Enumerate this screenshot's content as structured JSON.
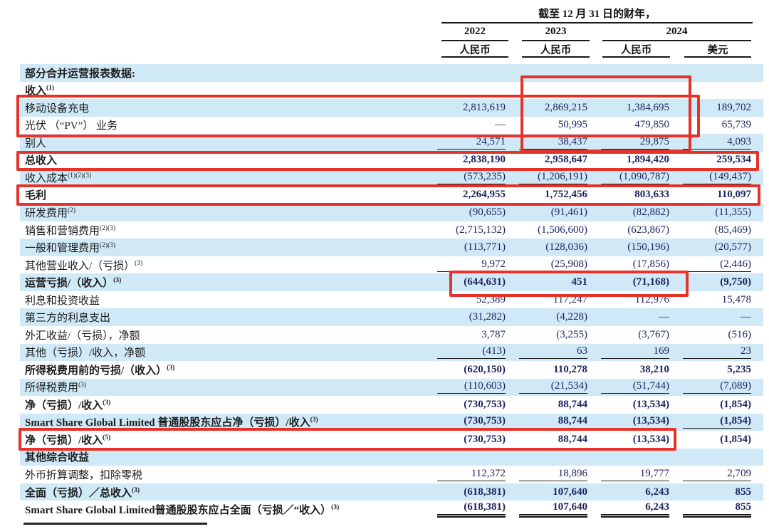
{
  "header": {
    "period_title": "截至 12 月 31 日的财年，",
    "years": [
      "2022",
      "2023",
      "2024"
    ],
    "currencies": [
      "人民币",
      "人民币",
      "人民币",
      "美元"
    ]
  },
  "colors": {
    "stripe_blue": "#cfe9f7",
    "highlight_red": "#e5332a",
    "number_text": "#1f2460",
    "label_text": "#1c1c1c"
  },
  "annotations": {
    "boxes": [
      "highlight-2023-2024-rmb-columns",
      "highlight-mobile-charging-and-pv-rows",
      "highlight-total-revenue-row",
      "highlight-gross-profit-row",
      "highlight-operating-loss-values",
      "highlight-net-loss-duplicate-row"
    ]
  },
  "table": {
    "rows": [
      {
        "label": "部分合并运营报表数据:",
        "sup": "",
        "bold": true,
        "values": [
          "",
          "",
          "",
          ""
        ]
      },
      {
        "label": "收入",
        "sup": "(1)",
        "bold": true,
        "values": [
          "",
          "",
          "",
          ""
        ]
      },
      {
        "label": "移动设备充电",
        "sup": "",
        "bold": false,
        "values": [
          "2,813,619",
          "2,869,215",
          "1,384,695",
          "189,702"
        ]
      },
      {
        "label": "光伏 （“PV”） 业务",
        "sup": "",
        "bold": false,
        "values": [
          "—",
          "50,995",
          "479,850",
          "65,739"
        ]
      },
      {
        "label": "别人",
        "sup": "",
        "bold": false,
        "values": [
          "24,571",
          "38,437",
          "29,875",
          "4,093"
        ],
        "underline": true
      },
      {
        "label": "总收入",
        "sup": "",
        "bold": true,
        "values": [
          "2,838,190",
          "2,958,647",
          "1,894,420",
          "259,534"
        ]
      },
      {
        "label": "收入成本",
        "sup": "(1)(2)(3)",
        "bold": false,
        "values": [
          "(573,235)",
          "(1,206,191)",
          "(1,090,787)",
          "(149,437)"
        ],
        "underline": true
      },
      {
        "label": "毛利",
        "sup": "",
        "bold": true,
        "values": [
          "2,264,955",
          "1,752,456",
          "803,633",
          "110,097"
        ]
      },
      {
        "label": "研发费用",
        "sup": "(2)",
        "bold": false,
        "values": [
          "(90,655)",
          "(91,461)",
          "(82,882)",
          "(11,355)"
        ]
      },
      {
        "label": "销售和营销费用",
        "sup": "(2)(3)",
        "bold": false,
        "values": [
          "(2,715,132)",
          "(1,506,600)",
          "(623,867)",
          "(85,469)"
        ]
      },
      {
        "label": "一般和管理费用",
        "sup": "(2)(3)",
        "bold": false,
        "values": [
          "(113,771)",
          "(128,036)",
          "(150,196)",
          "(20,577)"
        ]
      },
      {
        "label": "其他营业收入/（亏损）",
        "sup": "(3)",
        "bold": false,
        "values": [
          "9,972",
          "(25,908)",
          "(17,856)",
          "(2,446)"
        ],
        "underline": true
      },
      {
        "label": "运营亏损/（收入）",
        "sup": "(3)",
        "bold": true,
        "values": [
          "(644,631)",
          "451",
          "(71,168)",
          "(9,750)"
        ]
      },
      {
        "label": "利息和投资收益",
        "sup": "",
        "bold": false,
        "values": [
          "52,389",
          "117,247",
          "112,976",
          "15,478"
        ]
      },
      {
        "label": "第三方的利息支出",
        "sup": "",
        "bold": false,
        "values": [
          "(31,282)",
          "(4,228)",
          "—",
          "—"
        ]
      },
      {
        "label": "外汇收益/（亏损），净额",
        "sup": "",
        "bold": false,
        "values": [
          "3,787",
          "(3,255)",
          "(3,767)",
          "(516)"
        ]
      },
      {
        "label": "其他（亏损）/收入，净额",
        "sup": "",
        "bold": false,
        "values": [
          "(413)",
          "63",
          "169",
          "23"
        ],
        "underline": true
      },
      {
        "label": "所得税费用前的亏损/（收入）",
        "sup": "(3)",
        "bold": true,
        "values": [
          "(620,150)",
          "110,278",
          "38,210",
          "5,235"
        ]
      },
      {
        "label": "所得税费用",
        "sup": "(3)",
        "bold": false,
        "values": [
          "(110,603)",
          "(21,534)",
          "(51,744)",
          "(7,089)"
        ],
        "underline": true
      },
      {
        "label": "净（亏损）/收入",
        "sup": "(3)",
        "bold": true,
        "values": [
          "(730,753)",
          "88,744",
          "(13,534)",
          "(1,854)"
        ]
      },
      {
        "label": "Smart Share Global Limited 普通股股东应占净（亏损）/收入",
        "sup": "(3)",
        "bold": true,
        "values": [
          "(730,753)",
          "88,744",
          "(13,534)",
          "(1,854)"
        ],
        "underline": true
      },
      {
        "label": "净（亏损）/收入",
        "sup": "(5)",
        "bold": true,
        "values": [
          "(730,753)",
          "88,744",
          "(13,534)",
          "(1,854)"
        ]
      },
      {
        "label": "其他综合收益",
        "sup": "",
        "bold": true,
        "values": [
          "",
          "",
          "",
          ""
        ]
      },
      {
        "label": "外币折算调整，扣除零税",
        "sup": "",
        "bold": false,
        "values": [
          "112,372",
          "18,896",
          "19,777",
          "2,709"
        ],
        "underline": true
      },
      {
        "label": "全面（亏损）／总收入",
        "sup": "(3)",
        "bold": true,
        "values": [
          "(618,381)",
          "107,640",
          "6,243",
          "855"
        ]
      },
      {
        "label": "Smart Share Global Limited普通股股东应占全面（亏损／“收入）",
        "sup": "(3)",
        "bold": true,
        "values": [
          "(618,381)",
          "107,640",
          "6,243",
          "855"
        ],
        "double_underline": true
      }
    ]
  }
}
